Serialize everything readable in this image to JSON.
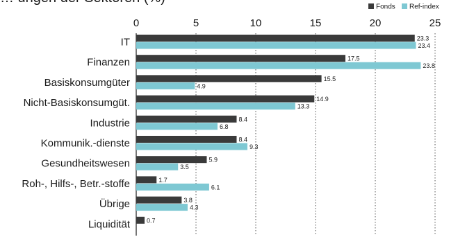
{
  "chart_data": {
    "type": "bar",
    "orientation": "horizontal",
    "title": "… ungen der Sektoren (%)",
    "categories": [
      "IT",
      "Finanzen",
      "Basiskonsumgüter",
      "Nicht-Basiskonsumgüt.",
      "Industrie",
      "Kommunik.-dienste",
      "Gesundheitswesen",
      "Roh-, Hilfs-, Betr.-stoffe",
      "Übrige",
      "Liquidität"
    ],
    "series": [
      {
        "name": "Fonds",
        "color": "#3a3a3a",
        "values": [
          23.3,
          17.5,
          15.5,
          14.9,
          8.4,
          8.4,
          5.9,
          1.7,
          3.8,
          0.7
        ]
      },
      {
        "name": "Ref-index",
        "color": "#7ec8d3",
        "values": [
          23.4,
          23.8,
          4.9,
          13.3,
          6.8,
          9.3,
          3.5,
          6.1,
          4.3,
          null
        ]
      }
    ],
    "value_labels": {
      "Fonds": [
        "23.3",
        "17.5",
        "15.5",
        "14.9",
        "8.4",
        "8.4",
        "5.9",
        "1.7",
        "3.8",
        "0.7"
      ],
      "Ref-index": [
        "23.4",
        "23.8",
        "4.9",
        "13.3",
        "6.8",
        "9.3",
        "3.5",
        "6.1",
        "4.3",
        ""
      ]
    },
    "x_ticks": [
      "0",
      "5",
      "10",
      "15",
      "20",
      "25"
    ],
    "xlim": [
      0,
      25
    ],
    "xlabel": "",
    "ylabel": "",
    "grid": "vertical-dotted",
    "legend_position": "top-right"
  }
}
